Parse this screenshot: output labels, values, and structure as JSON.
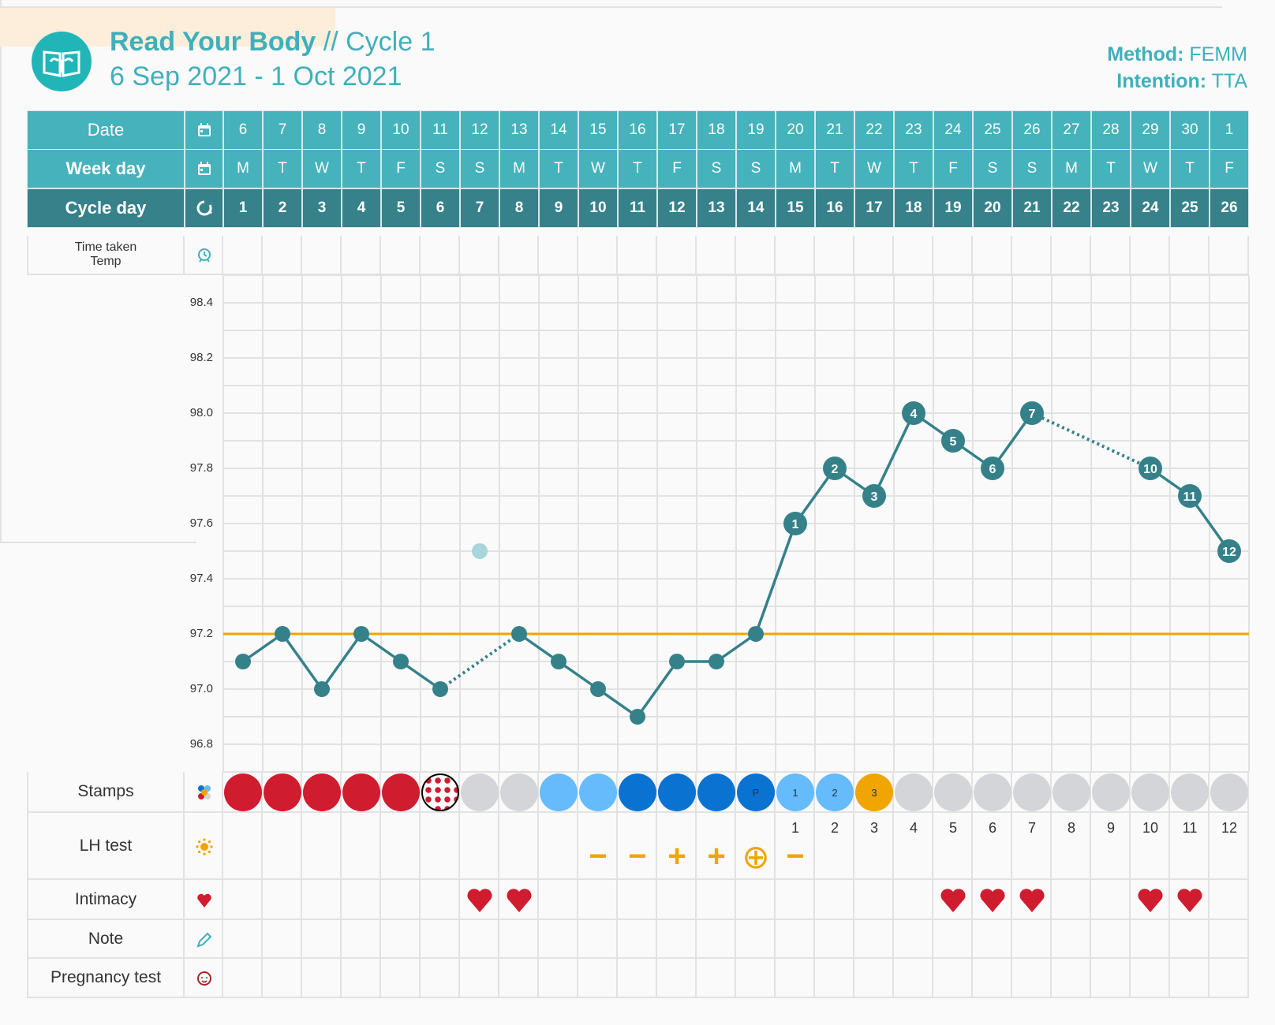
{
  "header": {
    "title_bold": "Read Your Body",
    "title_rest": " // Cycle 1",
    "date_range": "6 Sep 2021 - 1 Oct 2021",
    "method_label": "Method:",
    "method_value": " FEMM",
    "intention_label": "Intention:",
    "intention_value": " TTA"
  },
  "colors": {
    "teal": "#46b2bc",
    "teal_dark": "#36818a",
    "line": "#35818a",
    "coverline": "#f0a500",
    "red": "#d01c2f",
    "light_blue": "#66bbfc",
    "dark_blue": "#0a73d1",
    "gray": "#d4d5d9",
    "orange": "#f0a500",
    "peach": "#fdeedb"
  },
  "rows": {
    "date": "Date",
    "weekday": "Week day",
    "cycle_day": "Cycle day",
    "time_taken": "Time taken",
    "temp": "Temp",
    "stamps": "Stamps",
    "lh_test": "LH test",
    "intimacy": "Intimacy",
    "note": "Note",
    "pregnancy_test": "Pregnancy test"
  },
  "dates": [
    "6",
    "7",
    "8",
    "9",
    "10",
    "11",
    "12",
    "13",
    "14",
    "15",
    "16",
    "17",
    "18",
    "19",
    "20",
    "21",
    "22",
    "23",
    "24",
    "25",
    "26",
    "27",
    "28",
    "29",
    "30",
    "1"
  ],
  "weekdays": [
    "M",
    "T",
    "W",
    "T",
    "F",
    "S",
    "S",
    "M",
    "T",
    "W",
    "T",
    "F",
    "S",
    "S",
    "M",
    "T",
    "W",
    "T",
    "F",
    "S",
    "S",
    "M",
    "T",
    "W",
    "T",
    "F"
  ],
  "cycle_days": [
    "1",
    "2",
    "3",
    "4",
    "5",
    "6",
    "7",
    "8",
    "9",
    "10",
    "11",
    "12",
    "13",
    "14",
    "15",
    "16",
    "17",
    "18",
    "19",
    "20",
    "21",
    "22",
    "23",
    "24",
    "25",
    "26"
  ],
  "stamps": [
    {
      "type": "red"
    },
    {
      "type": "red"
    },
    {
      "type": "red"
    },
    {
      "type": "red"
    },
    {
      "type": "red"
    },
    {
      "type": "dotted"
    },
    {
      "type": "gray"
    },
    {
      "type": "gray"
    },
    {
      "type": "light_blue"
    },
    {
      "type": "light_blue"
    },
    {
      "type": "dark_blue"
    },
    {
      "type": "dark_blue"
    },
    {
      "type": "dark_blue"
    },
    {
      "type": "dark_blue",
      "label": "P"
    },
    {
      "type": "light_blue",
      "label": "1"
    },
    {
      "type": "light_blue",
      "label": "2"
    },
    {
      "type": "orange",
      "label": "3"
    },
    {
      "type": "gray"
    },
    {
      "type": "gray"
    },
    {
      "type": "gray"
    },
    {
      "type": "gray"
    },
    {
      "type": "gray"
    },
    {
      "type": "gray"
    },
    {
      "type": "gray"
    },
    {
      "type": "gray"
    },
    {
      "type": "gray"
    }
  ],
  "lh": {
    "counts": [
      "",
      "",
      "",
      "",
      "",
      "",
      "",
      "",
      "",
      "",
      "",
      "",
      "",
      "",
      "1",
      "2",
      "3",
      "4",
      "5",
      "6",
      "7",
      "8",
      "9",
      "10",
      "11",
      "12"
    ],
    "results": [
      "",
      "",
      "",
      "",
      "",
      "",
      "",
      "",
      "",
      "−",
      "−",
      "+",
      "+",
      "⊕",
      "−",
      "",
      "",
      "",
      "",
      "",
      "",
      "",
      "",
      "",
      "",
      ""
    ]
  },
  "intimacy": {
    "hearts": [
      7,
      8,
      19,
      20,
      21,
      24,
      25
    ],
    "shaded_days": [
      9,
      17
    ]
  },
  "chart_data": {
    "type": "line",
    "title": "",
    "xlabel": "Cycle day",
    "ylabel": "Temp",
    "x": [
      1,
      2,
      3,
      4,
      5,
      6,
      7,
      8,
      9,
      10,
      11,
      12,
      13,
      14,
      15,
      16,
      17,
      18,
      19,
      20,
      21,
      22,
      23,
      24,
      25,
      26
    ],
    "series": [
      {
        "name": "Temperature",
        "values": [
          97.1,
          97.2,
          97.0,
          97.2,
          97.1,
          97.0,
          97.5,
          97.2,
          97.1,
          97.0,
          96.9,
          97.1,
          97.1,
          97.2,
          97.6,
          97.8,
          97.7,
          98.0,
          97.9,
          97.8,
          98.0,
          null,
          null,
          97.8,
          97.7,
          97.5
        ]
      }
    ],
    "excluded_days": [
      7
    ],
    "point_labels": {
      "15": "1",
      "16": "2",
      "17": "3",
      "18": "4",
      "19": "5",
      "20": "6",
      "21": "7",
      "24": "10",
      "25": "11",
      "26": "12"
    },
    "coverline": 97.2,
    "yticks": [
      "98.4",
      "98.2",
      "98.0",
      "97.8",
      "97.6",
      "97.4",
      "97.2",
      "97.0",
      "96.8"
    ],
    "ylim": [
      96.7,
      98.5
    ],
    "grid": true
  }
}
